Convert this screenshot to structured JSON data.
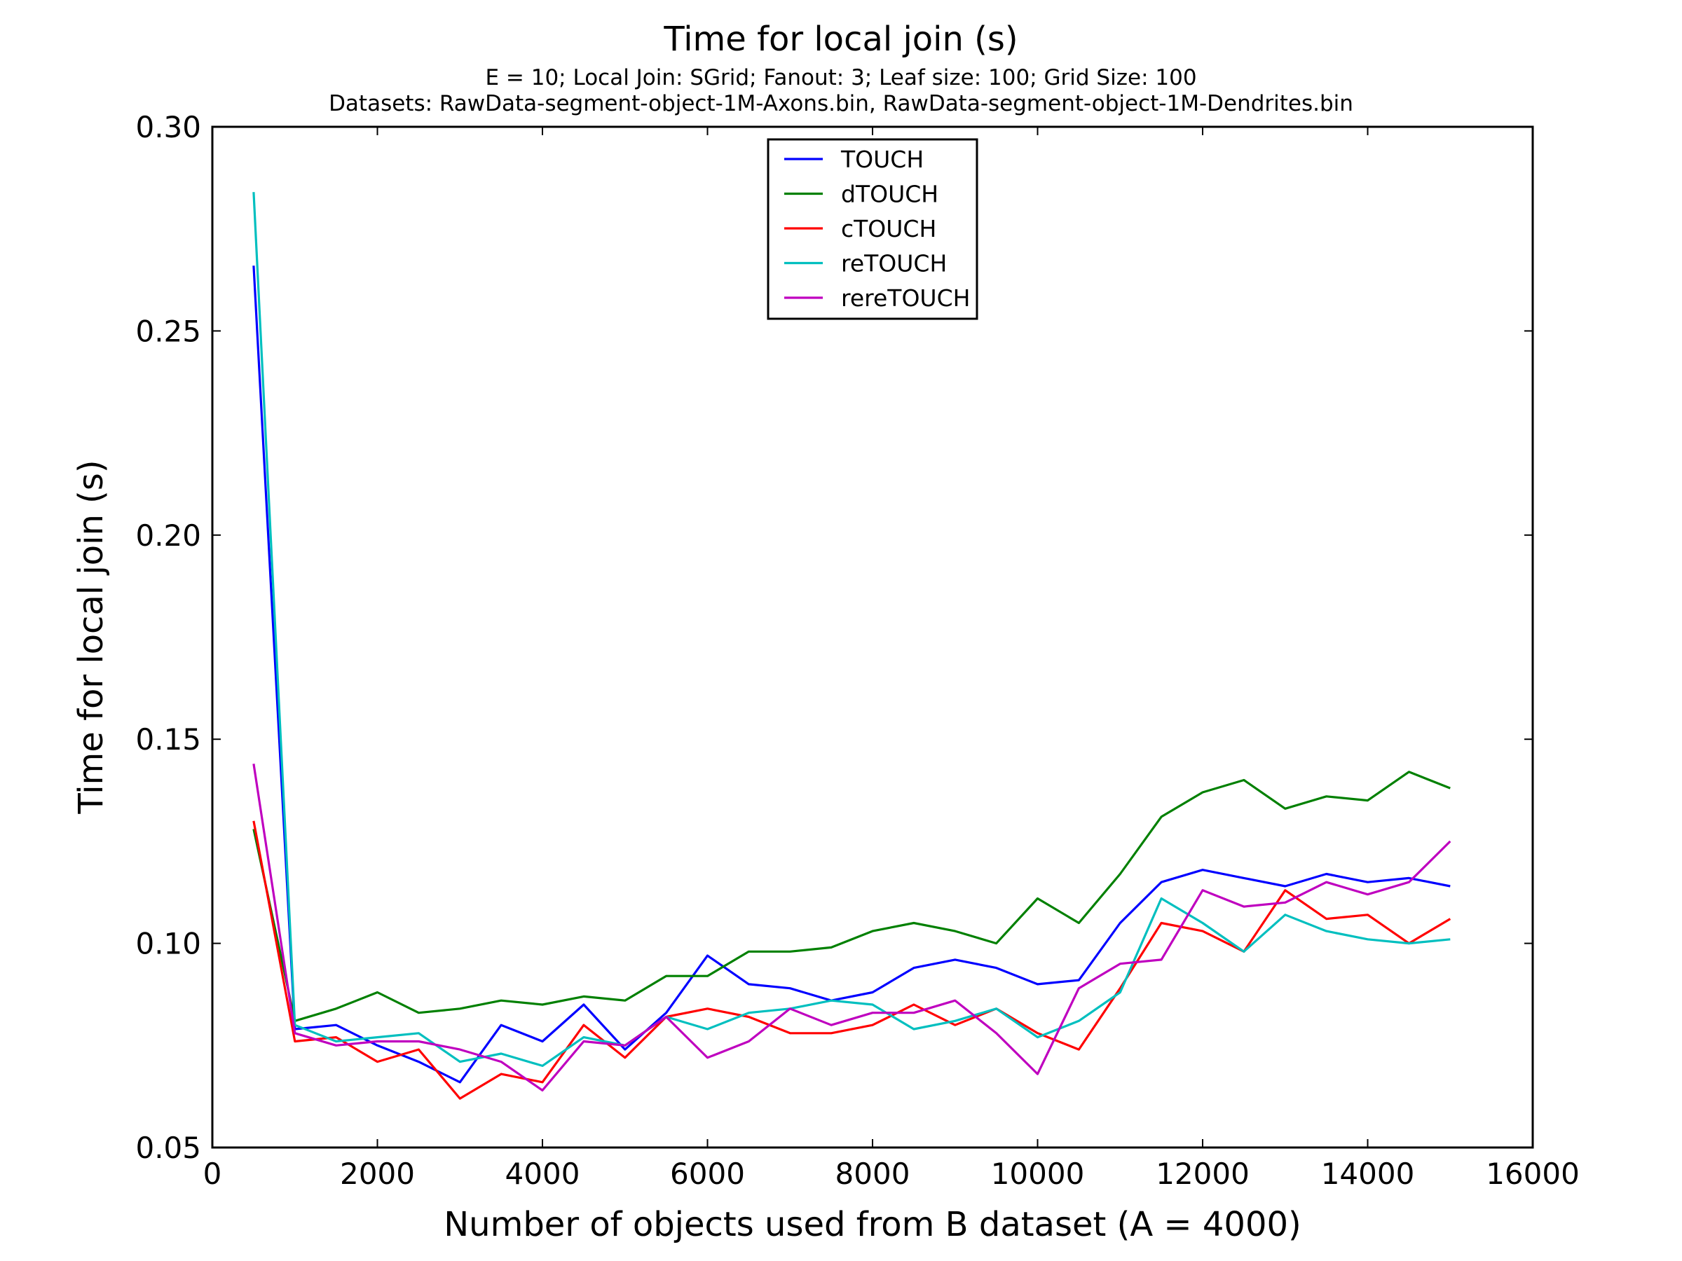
{
  "chart_data": {
    "type": "line",
    "title": "Time for local join (s)",
    "subtitle_lines": [
      "E = 10; Local Join: SGrid; Fanout: 3; Leaf size: 100; Grid Size: 100",
      "Datasets: RawData-segment-object-1M-Axons.bin, RawData-segment-object-1M-Dendrites.bin"
    ],
    "xlabel": "Number of objects used from B dataset (A = 4000)",
    "ylabel": "Time for local join (s)",
    "xlim": [
      0,
      16000
    ],
    "ylim": [
      0.05,
      0.3
    ],
    "xticks": [
      0,
      2000,
      4000,
      6000,
      8000,
      10000,
      12000,
      14000,
      16000
    ],
    "xtick_labels": [
      "0",
      "2000",
      "4000",
      "6000",
      "8000",
      "10000",
      "12000",
      "14000",
      "16000"
    ],
    "yticks": [
      0.05,
      0.1,
      0.15,
      0.2,
      0.25,
      0.3
    ],
    "ytick_labels": [
      "0.05",
      "0.10",
      "0.15",
      "0.20",
      "0.25",
      "0.30"
    ],
    "grid": false,
    "legend_position": "top-center",
    "x": [
      500,
      1000,
      1500,
      2000,
      2500,
      3000,
      3500,
      4000,
      4500,
      5000,
      5500,
      6000,
      6500,
      7000,
      7500,
      8000,
      8500,
      9000,
      9500,
      10000,
      10500,
      11000,
      11500,
      12000,
      12500,
      13000,
      13500,
      14000,
      14500,
      15000
    ],
    "series": [
      {
        "name": "TOUCH",
        "color": "#0000ff",
        "values": [
          0.266,
          0.079,
          0.08,
          0.075,
          0.071,
          0.066,
          0.08,
          0.076,
          0.085,
          0.074,
          0.083,
          0.097,
          0.09,
          0.089,
          0.086,
          0.088,
          0.094,
          0.096,
          0.094,
          0.09,
          0.091,
          0.105,
          0.115,
          0.118,
          0.116,
          0.114,
          0.117,
          0.115,
          0.116,
          0.114
        ]
      },
      {
        "name": "dTOUCH",
        "color": "#008000",
        "values": [
          0.128,
          0.081,
          0.084,
          0.088,
          0.083,
          0.084,
          0.086,
          0.085,
          0.087,
          0.086,
          0.092,
          0.092,
          0.098,
          0.098,
          0.099,
          0.103,
          0.105,
          0.103,
          0.1,
          0.111,
          0.105,
          0.117,
          0.131,
          0.137,
          0.14,
          0.133,
          0.136,
          0.135,
          0.142,
          0.138
        ]
      },
      {
        "name": "cTOUCH",
        "color": "#ff0000",
        "values": [
          0.13,
          0.076,
          0.077,
          0.071,
          0.074,
          0.062,
          0.068,
          0.066,
          0.08,
          0.072,
          0.082,
          0.084,
          0.082,
          0.078,
          0.078,
          0.08,
          0.085,
          0.08,
          0.084,
          0.078,
          0.074,
          0.089,
          0.105,
          0.103,
          0.098,
          0.113,
          0.106,
          0.107,
          0.1,
          0.106
        ]
      },
      {
        "name": "reTOUCH",
        "color": "#00bfbf",
        "values": [
          0.284,
          0.08,
          0.076,
          0.077,
          0.078,
          0.071,
          0.073,
          0.07,
          0.077,
          0.075,
          0.082,
          0.079,
          0.083,
          0.084,
          0.086,
          0.085,
          0.079,
          0.081,
          0.084,
          0.077,
          0.081,
          0.088,
          0.111,
          0.105,
          0.098,
          0.107,
          0.103,
          0.101,
          0.1,
          0.101
        ]
      },
      {
        "name": "rereTOUCH",
        "color": "#bf00bf",
        "values": [
          0.144,
          0.078,
          0.075,
          0.076,
          0.076,
          0.074,
          0.071,
          0.064,
          0.076,
          0.075,
          0.082,
          0.072,
          0.076,
          0.084,
          0.08,
          0.083,
          0.083,
          0.086,
          0.078,
          0.068,
          0.089,
          0.095,
          0.096,
          0.113,
          0.109,
          0.11,
          0.115,
          0.112,
          0.115,
          0.125
        ]
      }
    ]
  }
}
